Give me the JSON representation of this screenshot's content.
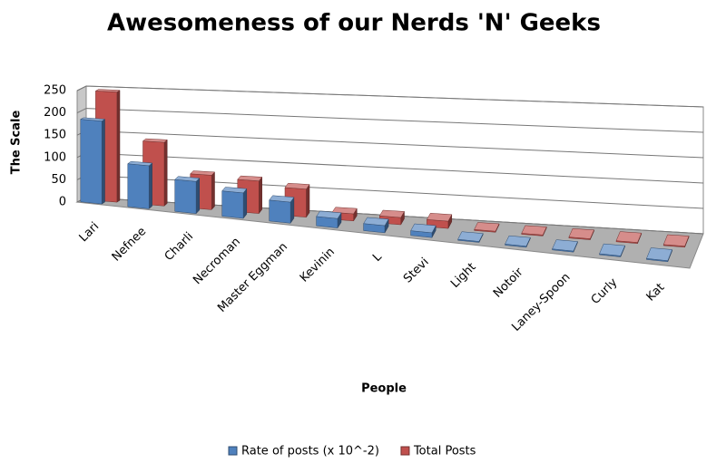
{
  "chart_data": {
    "type": "bar3d",
    "title": "Awesomeness of our Nerds 'N' Geeks",
    "x_label": "People",
    "y_label": "The Scale",
    "categories": [
      "Lari",
      "Nefnee",
      "Charli",
      "Necroman",
      "Master Eggman",
      "Kevinin",
      "L",
      "Stevi",
      "Light",
      "Notoir",
      "Laney-Spoon",
      "Curly",
      "Kat"
    ],
    "series": [
      {
        "name": "Rate of posts (x 10^-2)",
        "color": "#4f81bd",
        "values": [
          185,
          95,
          70,
          55,
          45,
          20,
          15,
          10,
          2,
          2,
          2,
          2,
          2
        ]
      },
      {
        "name": "Total Posts",
        "color": "#c0504d",
        "values": [
          245,
          140,
          75,
          70,
          60,
          15,
          15,
          15,
          2,
          2,
          2,
          2,
          2
        ]
      }
    ],
    "ylim": [
      0,
      250
    ],
    "yticks": [
      0,
      50,
      100,
      150,
      200,
      250
    ],
    "grid": true,
    "legend": "bottom"
  }
}
